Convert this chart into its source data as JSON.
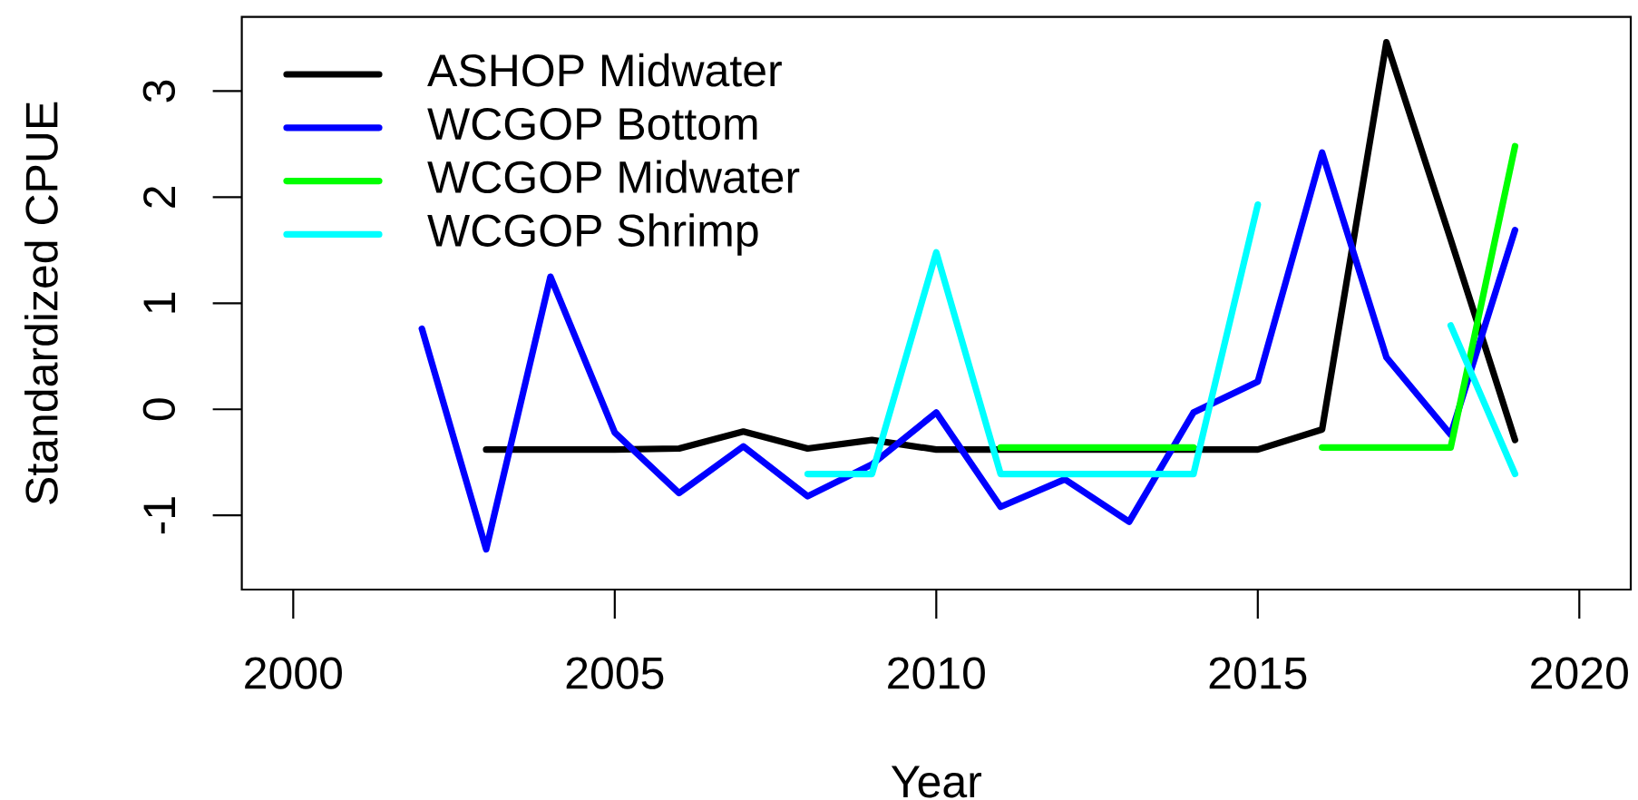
{
  "chart_data": {
    "type": "line",
    "xlabel": "Year",
    "ylabel": "Standardized CPUE",
    "x": [
      2002,
      2003,
      2004,
      2005,
      2006,
      2007,
      2008,
      2009,
      2010,
      2011,
      2012,
      2013,
      2014,
      2015,
      2016,
      2017,
      2018,
      2019
    ],
    "series": [
      {
        "name": "ASHOP Midwater",
        "color": "#000000",
        "values": [
          null,
          -0.38,
          -0.38,
          -0.38,
          -0.37,
          -0.21,
          -0.37,
          -0.29,
          -0.38,
          -0.38,
          -0.38,
          -0.38,
          -0.38,
          -0.38,
          -0.19,
          3.46,
          1.6,
          -0.29
        ]
      },
      {
        "name": "WCGOP Bottom",
        "color": "#0000ff",
        "values": [
          0.76,
          -1.32,
          1.25,
          -0.22,
          -0.79,
          -0.35,
          -0.82,
          -0.52,
          -0.03,
          -0.92,
          -0.66,
          -1.06,
          -0.03,
          0.26,
          2.42,
          0.49,
          -0.24,
          1.69
        ]
      },
      {
        "name": "WCGOP Midwater",
        "color": "#00ff00",
        "values": [
          null,
          null,
          null,
          null,
          null,
          null,
          null,
          null,
          null,
          -0.36,
          -0.36,
          -0.36,
          -0.36,
          null,
          -0.36,
          -0.36,
          -0.36,
          2.48
        ]
      },
      {
        "name": "WCGOP Shrimp",
        "color": "#00ffff",
        "values": [
          null,
          null,
          null,
          null,
          null,
          null,
          -0.61,
          -0.61,
          1.48,
          -0.61,
          -0.61,
          -0.61,
          -0.61,
          1.93,
          null,
          null,
          0.79,
          -0.61
        ]
      }
    ],
    "xlim": [
      1999.2,
      2020.8
    ],
    "ylim": [
      -1.7,
      3.7
    ],
    "xticks": [
      2000,
      2005,
      2010,
      2015,
      2020
    ],
    "yticks": [
      -1,
      0,
      1,
      2,
      3
    ],
    "legend": "top left"
  }
}
